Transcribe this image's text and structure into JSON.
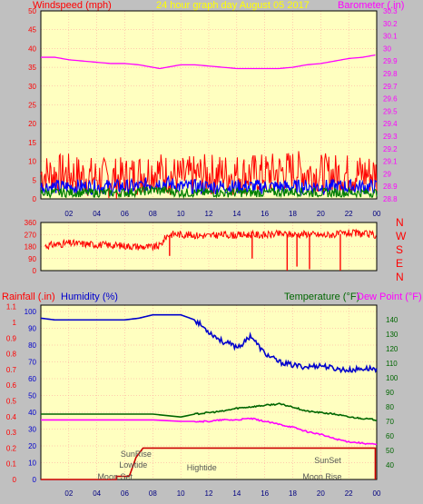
{
  "header": {
    "title": "24 hour graph day   August 05 2017",
    "left_label": "Windspeed (mph)",
    "right_label": "Barometer (.in)"
  },
  "colors": {
    "plot_bg": "#ffffc0",
    "frame_bg": "#c0c0c0",
    "wind": "#ff0000",
    "gust": "#0000ff",
    "avg": "#008000",
    "baro": "#ff00ff",
    "winddir": "#ff0000",
    "rain": "#cc0000",
    "humidity": "#0000cc",
    "temperature": "#006600",
    "dewpoint": "#ff00ff",
    "title": "#ffff00",
    "grid": "#ff9999"
  },
  "bottom_labels": {
    "rainfall": "Rainfall (.in)",
    "humidity": "Humidity (%)",
    "temperature": "Temperature (°F)",
    "dewpoint": "Dew Point (°F)"
  },
  "direction_letters": [
    "N",
    "W",
    "S",
    "E",
    "N"
  ],
  "annotations": [
    {
      "text": "SunRise",
      "hour": 6.8
    },
    {
      "text": "Lowtide",
      "hour": 6.6
    },
    {
      "text": "Moon Set",
      "hour": 5.3
    },
    {
      "text": "Hightide",
      "hour": 11.5
    },
    {
      "text": "SunSet",
      "hour": 20.5
    },
    {
      "text": "Moon Rise",
      "hour": 20.1
    }
  ],
  "chart_data": [
    {
      "type": "line",
      "name": "wind-barometer",
      "x_ticks": [
        "02",
        "04",
        "06",
        "08",
        "10",
        "12",
        "14",
        "16",
        "18",
        "20",
        "22",
        "00"
      ],
      "xlim": [
        0,
        24
      ],
      "ylim": [
        0,
        50
      ],
      "y_ticks": [
        0,
        5,
        10,
        15,
        20,
        25,
        30,
        35,
        40,
        45,
        50
      ],
      "y2lim": [
        28.8,
        30.3
      ],
      "y2_ticks": [
        "28.8",
        "28.9",
        "29",
        "29.1",
        "29.2",
        "29.3",
        "29.4",
        "29.5",
        "29.6",
        "29.7",
        "29.8",
        "29.9",
        "30",
        "30.1",
        "30.2",
        "30.3"
      ],
      "series": [
        {
          "axis": "y2",
          "x": [
            0,
            1,
            2,
            3,
            4,
            5,
            6,
            7,
            8,
            8.5,
            9,
            10,
            11,
            12,
            13,
            14,
            15,
            16,
            17,
            18,
            19,
            20,
            21,
            22,
            23,
            24
          ],
          "values": [
            29.93,
            29.93,
            29.91,
            29.9,
            29.89,
            29.88,
            29.88,
            29.87,
            29.85,
            29.84,
            29.85,
            29.87,
            29.87,
            29.86,
            29.85,
            29.84,
            29.84,
            29.84,
            29.84,
            29.85,
            29.87,
            29.88,
            29.9,
            29.92,
            29.93,
            29.95
          ]
        },
        {
          "axis": "y",
          "style": "wind",
          "x": [
            0,
            2,
            4,
            6,
            7,
            8,
            9,
            10,
            12,
            14,
            16,
            18,
            20,
            22,
            24
          ],
          "values": [
            6,
            6,
            5,
            5,
            6,
            7,
            6,
            5,
            6,
            6,
            6,
            7,
            6,
            6,
            6
          ]
        },
        {
          "axis": "y",
          "style": "gust",
          "x": [
            0,
            2,
            4,
            6,
            7,
            8,
            9,
            10,
            12,
            14,
            16,
            18,
            20,
            22,
            24
          ],
          "values": [
            3,
            3,
            3,
            3,
            3,
            4,
            4,
            3,
            3,
            3,
            3,
            3,
            3,
            3,
            3
          ]
        },
        {
          "axis": "y",
          "style": "avg",
          "x": [
            0,
            2,
            4,
            6,
            7,
            8,
            9,
            10,
            12,
            14,
            16,
            18,
            20,
            22,
            24
          ],
          "values": [
            1.5,
            1.5,
            1.5,
            1.5,
            1.8,
            2.2,
            2,
            1.5,
            1.5,
            1.5,
            1.5,
            1.8,
            1.5,
            1.5,
            1.5
          ]
        }
      ]
    },
    {
      "type": "scatter",
      "name": "wind-direction",
      "xlim": [
        0,
        24
      ],
      "ylim": [
        0,
        360
      ],
      "y_ticks": [
        0,
        90,
        180,
        270,
        360
      ],
      "x_ticks": [
        "02",
        "04",
        "06",
        "08",
        "10",
        "12",
        "14",
        "16",
        "18",
        "20",
        "22",
        "00"
      ],
      "x": [
        0,
        1,
        2,
        3,
        4,
        5,
        6,
        7,
        8,
        8.5,
        9,
        9.5,
        10,
        11,
        12,
        13,
        14,
        15,
        16,
        17,
        18,
        19,
        20,
        21,
        22,
        23,
        24
      ],
      "values": [
        180,
        195,
        205,
        200,
        195,
        190,
        185,
        180,
        175,
        185,
        260,
        275,
        270,
        265,
        260,
        270,
        265,
        270,
        265,
        275,
        270,
        275,
        265,
        270,
        280,
        275,
        265
      ],
      "drops": [
        {
          "x": 9.2,
          "value": 110
        },
        {
          "x": 15.1,
          "value": 90
        },
        {
          "x": 17.6,
          "value": 0
        },
        {
          "x": 18.3,
          "value": 30
        },
        {
          "x": 19.2,
          "value": 10
        },
        {
          "x": 21.4,
          "value": 0
        }
      ]
    },
    {
      "type": "line",
      "name": "rain-humidity-temperature",
      "xlim": [
        0,
        24
      ],
      "x_ticks": [
        "02",
        "04",
        "06",
        "08",
        "10",
        "12",
        "14",
        "16",
        "18",
        "20",
        "22",
        "00"
      ],
      "rain_ylim": [
        0,
        1.0
      ],
      "rain_ticks": [
        "0",
        "0.1",
        "0.2",
        "0.3",
        "0.4",
        "0.5",
        "0.6",
        "0.7",
        "0.8",
        "0.9",
        "1",
        "1.1"
      ],
      "humidity_ylim": [
        0,
        100
      ],
      "humidity_ticks": [
        "0",
        "10",
        "20",
        "30",
        "40",
        "50",
        "60",
        "70",
        "80",
        "90",
        "100"
      ],
      "temp_ylim": [
        30,
        150
      ],
      "temp_ticks": [
        "40",
        "50",
        "60",
        "70",
        "80",
        "90",
        "100",
        "110",
        "120",
        "130",
        "140"
      ],
      "series": [
        {
          "axis": "humidity",
          "style": "humidity",
          "x": [
            0,
            1,
            2,
            4,
            6,
            7,
            8,
            9,
            10,
            11,
            12,
            13,
            14,
            14.5,
            15,
            15.5,
            16,
            17,
            18,
            19,
            20,
            21,
            22,
            23,
            24
          ],
          "values": [
            96,
            95,
            95,
            95,
            95,
            96,
            98,
            98,
            98,
            95,
            88,
            82,
            79,
            81,
            86,
            80,
            75,
            70,
            68,
            67,
            68,
            66,
            65,
            66,
            66
          ]
        },
        {
          "axis": "temp",
          "style": "temperature",
          "x": [
            0,
            2,
            4,
            6,
            8,
            10,
            11,
            12,
            13,
            14,
            15,
            16,
            17,
            18,
            19,
            20,
            21,
            22,
            23,
            24
          ],
          "values": [
            75,
            75,
            75,
            75,
            75,
            73,
            75,
            76,
            77,
            79,
            80,
            81,
            82,
            80,
            77,
            76,
            75,
            73,
            72,
            71
          ]
        },
        {
          "axis": "temp",
          "style": "dewpoint",
          "x": [
            0,
            2,
            4,
            6,
            8,
            10,
            11,
            12,
            13,
            14,
            15,
            16,
            17,
            18,
            19,
            20,
            21,
            22,
            23,
            24
          ],
          "values": [
            71,
            71,
            71,
            71,
            71,
            70,
            70,
            70,
            71,
            71,
            72,
            70,
            68,
            66,
            63,
            61,
            58,
            56,
            55,
            54
          ]
        },
        {
          "axis": "rain",
          "style": "rain",
          "x": [
            0,
            5.4,
            5.4,
            6.3,
            6.4,
            6.8,
            7.3,
            7.4,
            23.9,
            23.9
          ],
          "values": [
            0,
            0,
            0.02,
            0.02,
            0.04,
            0.14,
            0.2,
            0.2,
            0.2,
            0.0
          ]
        }
      ]
    }
  ]
}
